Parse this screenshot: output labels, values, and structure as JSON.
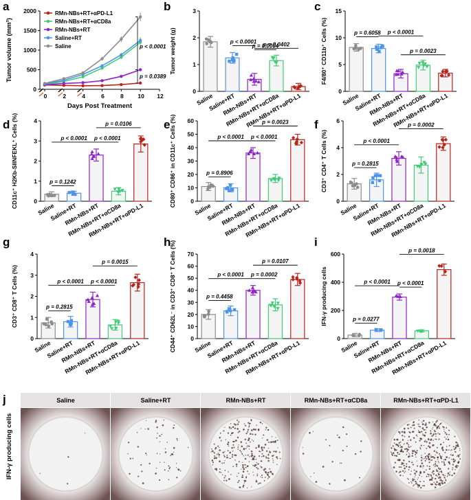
{
  "colors": {
    "saline": "#8c8c8c",
    "saline_rt": "#4d94e8",
    "rmn_rt": "#8e24c8",
    "rmn_cd8": "#3fcc74",
    "rmn_pdl1": "#b8241c"
  },
  "group_labels": [
    "Saline",
    "Saline+RT",
    "RMn-NBs+RT",
    "RMn-NBs+RT+αCD8a",
    "RMn-NBs+RT+αPD-L1"
  ],
  "panel_a_extra": {
    "pvalues": [
      "p < 0.0001",
      "p = 0.0389"
    ],
    "treatment_days": [
      0,
      2,
      4
    ]
  },
  "panel_j": {
    "letter": "j",
    "ylabel": "IFN-γ producing cells",
    "wells": [
      {
        "label": "Saline",
        "density": 4
      },
      {
        "label": "Saline+RT",
        "density": 60
      },
      {
        "label": "RMn-NBs+RT",
        "density": 300
      },
      {
        "label": "RMn-NBs+RT+αCD8a",
        "density": 25
      },
      {
        "label": "RMn-NBs+RT+αPD-L1",
        "density": 480
      }
    ]
  },
  "chart_data": [
    {
      "id": "a",
      "letter": "a",
      "type": "line",
      "title": "",
      "xlabel": "Days Post Treatment",
      "ylabel": "Tumor volume (mm³)",
      "xlim": [
        -0.5,
        12
      ],
      "ylim": [
        0,
        2000
      ],
      "xticks": [
        0,
        2,
        4,
        6,
        8,
        10,
        12
      ],
      "yticks": [
        0,
        500,
        1000,
        1500,
        2000
      ],
      "x": [
        0,
        2,
        4,
        6,
        8,
        10
      ],
      "legend_position": "top-left",
      "series": [
        {
          "name": "RMn-NBs+RT+αPD-L1",
          "key": "rmn_pdl1",
          "values": [
            110,
            100,
            90,
            95,
            120,
            160
          ]
        },
        {
          "name": "RMn-NBs+RT+αCD8a",
          "key": "rmn_cd8",
          "values": [
            120,
            200,
            320,
            540,
            820,
            1200
          ]
        },
        {
          "name": "RMn-NBs+RT",
          "key": "rmn_rt",
          "values": [
            110,
            150,
            170,
            220,
            330,
            500
          ]
        },
        {
          "name": "Saline+RT",
          "key": "saline_rt",
          "values": [
            140,
            230,
            380,
            600,
            880,
            1250
          ]
        },
        {
          "name": "Saline",
          "key": "saline",
          "values": [
            150,
            270,
            420,
            780,
            1280,
            1850
          ]
        }
      ]
    },
    {
      "id": "b",
      "letter": "b",
      "type": "bar",
      "ylabel": "Tumor weight (g)",
      "ylim": [
        0,
        3
      ],
      "yticks": [
        0,
        1,
        2,
        3
      ],
      "values": [
        1.85,
        1.25,
        0.45,
        1.15,
        0.18
      ],
      "errors": [
        0.2,
        0.2,
        0.22,
        0.2,
        0.12
      ],
      "comparisons": [
        {
          "from": 2,
          "to": 3,
          "level": 1,
          "label": "p = 0.0004"
        },
        {
          "from": 1,
          "to": 2,
          "level": 2,
          "label": "p < 0.0001"
        },
        {
          "from": 2,
          "to": 4,
          "level": 2,
          "label": "p = 0.0402"
        }
      ]
    },
    {
      "id": "c",
      "letter": "c",
      "type": "bar",
      "ylabel": "F4/80⁺ CD11b⁺ Cells (%)",
      "ylim": [
        0,
        15
      ],
      "yticks": [
        0,
        5,
        10,
        15
      ],
      "values": [
        8.2,
        8.0,
        3.3,
        4.9,
        3.4
      ],
      "errors": [
        0.7,
        0.8,
        0.8,
        0.9,
        0.7
      ],
      "comparisons": [
        {
          "from": 2,
          "to": 4,
          "level": 1,
          "label": "p = 0.0023"
        },
        {
          "from": 0,
          "to": 1,
          "level": 2,
          "label": "p = 0.6058"
        },
        {
          "from": 1,
          "to": 3,
          "level": 3,
          "label": "p < 0.0001"
        }
      ]
    },
    {
      "id": "d",
      "letter": "d",
      "type": "bar",
      "ylabel": "CD11c⁺ H2Kb-SIINFEKL⁺ Cells (%)",
      "ylim": [
        0,
        4
      ],
      "yticks": [
        0,
        1,
        2,
        3,
        4
      ],
      "values": [
        0.35,
        0.4,
        2.3,
        0.5,
        2.85
      ],
      "errors": [
        0.12,
        0.1,
        0.3,
        0.18,
        0.4
      ],
      "comparisons": [
        {
          "from": 0,
          "to": 1,
          "level": 1,
          "label": "p = 0.1242"
        },
        {
          "from": 0,
          "to": 2,
          "level": 2,
          "label": "p < 0.0001"
        },
        {
          "from": 2,
          "to": 3,
          "level": 2,
          "label": "p < 0.0001"
        },
        {
          "from": 2,
          "to": 4,
          "level": 3,
          "label": "p = 0.0106"
        }
      ]
    },
    {
      "id": "e",
      "letter": "e",
      "type": "bar",
      "ylabel": "CD80⁺ CD86⁺ in CD11c⁺ Cells (%)",
      "ylim": [
        0,
        60
      ],
      "yticks": [
        0,
        10,
        20,
        30,
        40,
        50,
        60
      ],
      "values": [
        11,
        10,
        36,
        17,
        46
      ],
      "errors": [
        3,
        3,
        4,
        3,
        4
      ],
      "comparisons": [
        {
          "from": 0,
          "to": 1,
          "level": 1,
          "label": "p = 0.8906"
        },
        {
          "from": 0,
          "to": 2,
          "level": 2,
          "label": "p < 0.0001"
        },
        {
          "from": 2,
          "to": 3,
          "level": 2,
          "label": "p < 0.0001"
        },
        {
          "from": 2,
          "to": 4,
          "level": 3,
          "label": "p = 0.0023"
        }
      ]
    },
    {
      "id": "f",
      "letter": "f",
      "type": "bar",
      "ylabel": "CD3⁺ CD4⁺ T Cells (%)",
      "ylim": [
        0,
        6
      ],
      "yticks": [
        0,
        2,
        4,
        6
      ],
      "values": [
        1.3,
        1.6,
        3.2,
        2.7,
        4.3
      ],
      "errors": [
        0.4,
        0.5,
        0.5,
        0.6,
        0.5
      ],
      "comparisons": [
        {
          "from": 0,
          "to": 1,
          "level": 1,
          "label": "p = 0.2815"
        },
        {
          "from": 0,
          "to": 2,
          "level": 2,
          "label": "p < 0.0001"
        },
        {
          "from": 2,
          "to": 4,
          "level": 3,
          "label": "p = 0.0002"
        }
      ]
    },
    {
      "id": "g",
      "letter": "g",
      "type": "bar",
      "ylabel": "CD3⁺ CD8⁺ T Cells (%)",
      "ylim": [
        0,
        4
      ],
      "yticks": [
        0,
        1,
        2,
        3,
        4
      ],
      "values": [
        0.75,
        0.8,
        1.85,
        0.65,
        2.65
      ],
      "errors": [
        0.25,
        0.25,
        0.35,
        0.25,
        0.4
      ],
      "comparisons": [
        {
          "from": 0,
          "to": 1,
          "level": 1,
          "label": "p = 0.2815"
        },
        {
          "from": 0,
          "to": 2,
          "level": 2,
          "label": "p < 0.0001"
        },
        {
          "from": 2,
          "to": 3,
          "level": 2,
          "label": "p < 0.0001"
        },
        {
          "from": 2,
          "to": 4,
          "level": 3,
          "label": "p = 0.0015"
        }
      ]
    },
    {
      "id": "h",
      "letter": "h",
      "type": "bar",
      "ylabel": "CD44⁺ CD62L⁻ in CD3⁺ CD8⁺ T Cells (%)",
      "ylim": [
        0,
        70
      ],
      "yticks": [
        0,
        10,
        20,
        30,
        40,
        50,
        60,
        70
      ],
      "values": [
        20,
        23,
        40,
        28,
        49
      ],
      "errors": [
        4,
        4,
        4,
        5,
        5
      ],
      "comparisons": [
        {
          "from": 0,
          "to": 1,
          "level": 1,
          "label": "p = 0.4458"
        },
        {
          "from": 0,
          "to": 2,
          "level": 2,
          "label": "p < 0.0001"
        },
        {
          "from": 2,
          "to": 3,
          "level": 2,
          "label": "p = 0.0002"
        },
        {
          "from": 2,
          "to": 4,
          "level": 3,
          "label": "p = 0.0107"
        }
      ]
    },
    {
      "id": "i",
      "letter": "i",
      "type": "bar",
      "ylabel": "IFN-γ producing cells",
      "ylim": [
        0,
        600
      ],
      "yticks": [
        0,
        200,
        400,
        600
      ],
      "values": [
        25,
        60,
        295,
        55,
        490
      ],
      "errors": [
        12,
        10,
        22,
        8,
        40
      ],
      "comparisons": [
        {
          "from": 0,
          "to": 1,
          "level": 1,
          "label": "p = 0.0277"
        },
        {
          "from": 2,
          "to": 3,
          "level": 2,
          "label": "p < 0.0001"
        },
        {
          "from": 0,
          "to": 2,
          "level": 3,
          "label": "p < 0.0001"
        },
        {
          "from": 2,
          "to": 4,
          "level": 4,
          "label": "p = 0.0018"
        }
      ]
    }
  ]
}
